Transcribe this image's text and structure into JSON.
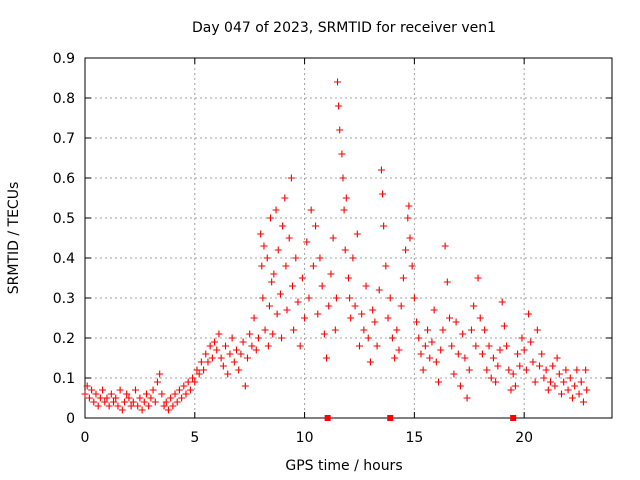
{
  "chart_data": {
    "type": "scatter",
    "title": "Day 047 of 2023, SRMTID for receiver ven1",
    "xlabel": "GPS time / hours",
    "ylabel": "SRMTID / TECUs",
    "xlim": [
      0,
      24
    ],
    "ylim": [
      0,
      0.9
    ],
    "grid": true,
    "x_ticks": [
      0,
      5,
      10,
      15,
      20
    ],
    "x_tick_labels": [
      "0",
      "5",
      "10",
      "15",
      "20"
    ],
    "y_ticks": [
      0,
      0.1,
      0.2,
      0.3,
      0.4,
      0.5,
      0.6,
      0.7,
      0.8,
      0.9
    ],
    "y_tick_labels": [
      "0",
      "0.1",
      "0.2",
      "0.3",
      "0.4",
      "0.5",
      "0.6",
      "0.7",
      "0.8",
      "0.9"
    ],
    "marker": "plus",
    "color": "#ff0000",
    "series": [
      {
        "name": "SRMTID",
        "points": [
          [
            0.0,
            0.06
          ],
          [
            0.1,
            0.08
          ],
          [
            0.2,
            0.05
          ],
          [
            0.3,
            0.07
          ],
          [
            0.4,
            0.04
          ],
          [
            0.5,
            0.06
          ],
          [
            0.6,
            0.03
          ],
          [
            0.7,
            0.05
          ],
          [
            0.8,
            0.07
          ],
          [
            0.9,
            0.04
          ],
          [
            1.0,
            0.05
          ],
          [
            1.1,
            0.03
          ],
          [
            1.2,
            0.06
          ],
          [
            1.3,
            0.04
          ],
          [
            1.4,
            0.05
          ],
          [
            1.5,
            0.03
          ],
          [
            1.6,
            0.07
          ],
          [
            1.7,
            0.02
          ],
          [
            1.8,
            0.04
          ],
          [
            1.9,
            0.06
          ],
          [
            2.0,
            0.05
          ],
          [
            2.1,
            0.03
          ],
          [
            2.2,
            0.04
          ],
          [
            2.3,
            0.07
          ],
          [
            2.4,
            0.03
          ],
          [
            2.5,
            0.05
          ],
          [
            2.6,
            0.02
          ],
          [
            2.7,
            0.04
          ],
          [
            2.8,
            0.06
          ],
          [
            2.9,
            0.03
          ],
          [
            3.0,
            0.05
          ],
          [
            3.1,
            0.07
          ],
          [
            3.2,
            0.04
          ],
          [
            3.3,
            0.09
          ],
          [
            3.4,
            0.11
          ],
          [
            3.5,
            0.06
          ],
          [
            3.6,
            0.03
          ],
          [
            3.7,
            0.04
          ],
          [
            3.8,
            0.02
          ],
          [
            3.9,
            0.05
          ],
          [
            4.0,
            0.03
          ],
          [
            4.1,
            0.06
          ],
          [
            4.2,
            0.04
          ],
          [
            4.3,
            0.07
          ],
          [
            4.4,
            0.05
          ],
          [
            4.5,
            0.08
          ],
          [
            4.6,
            0.06
          ],
          [
            4.7,
            0.09
          ],
          [
            4.8,
            0.07
          ],
          [
            4.9,
            0.1
          ],
          [
            5.0,
            0.09
          ],
          [
            5.1,
            0.12
          ],
          [
            5.2,
            0.11
          ],
          [
            5.3,
            0.14
          ],
          [
            5.4,
            0.12
          ],
          [
            5.5,
            0.16
          ],
          [
            5.6,
            0.14
          ],
          [
            5.7,
            0.18
          ],
          [
            5.8,
            0.15
          ],
          [
            5.9,
            0.19
          ],
          [
            6.0,
            0.17
          ],
          [
            6.1,
            0.21
          ],
          [
            6.2,
            0.15
          ],
          [
            6.3,
            0.13
          ],
          [
            6.4,
            0.18
          ],
          [
            6.5,
            0.11
          ],
          [
            6.6,
            0.16
          ],
          [
            6.7,
            0.2
          ],
          [
            6.8,
            0.14
          ],
          [
            6.9,
            0.17
          ],
          [
            7.0,
            0.12
          ],
          [
            7.1,
            0.16
          ],
          [
            7.2,
            0.19
          ],
          [
            7.3,
            0.08
          ],
          [
            7.4,
            0.15
          ],
          [
            7.5,
            0.21
          ],
          [
            7.6,
            0.18
          ],
          [
            7.7,
            0.25
          ],
          [
            7.8,
            0.17
          ],
          [
            7.9,
            0.2
          ],
          [
            8.0,
            0.46
          ],
          [
            8.05,
            0.38
          ],
          [
            8.1,
            0.3
          ],
          [
            8.15,
            0.43
          ],
          [
            8.2,
            0.22
          ],
          [
            8.3,
            0.4
          ],
          [
            8.35,
            0.18
          ],
          [
            8.4,
            0.28
          ],
          [
            8.45,
            0.5
          ],
          [
            8.5,
            0.34
          ],
          [
            8.55,
            0.21
          ],
          [
            8.6,
            0.36
          ],
          [
            8.7,
            0.52
          ],
          [
            8.75,
            0.26
          ],
          [
            8.8,
            0.42
          ],
          [
            8.9,
            0.31
          ],
          [
            8.95,
            0.2
          ],
          [
            9.0,
            0.48
          ],
          [
            9.1,
            0.55
          ],
          [
            9.15,
            0.38
          ],
          [
            9.2,
            0.27
          ],
          [
            9.3,
            0.45
          ],
          [
            9.4,
            0.6
          ],
          [
            9.45,
            0.33
          ],
          [
            9.5,
            0.22
          ],
          [
            9.6,
            0.4
          ],
          [
            9.7,
            0.29
          ],
          [
            9.8,
            0.18
          ],
          [
            9.9,
            0.35
          ],
          [
            10.0,
            0.25
          ],
          [
            10.1,
            0.44
          ],
          [
            10.2,
            0.3
          ],
          [
            10.3,
            0.52
          ],
          [
            10.4,
            0.38
          ],
          [
            10.5,
            0.48
          ],
          [
            10.6,
            0.26
          ],
          [
            10.7,
            0.4
          ],
          [
            10.8,
            0.33
          ],
          [
            10.9,
            0.21
          ],
          [
            11.0,
            0.15
          ],
          [
            11.1,
            0.28
          ],
          [
            11.2,
            0.36
          ],
          [
            11.3,
            0.45
          ],
          [
            11.4,
            0.22
          ],
          [
            11.45,
            0.3
          ],
          [
            11.5,
            0.84
          ],
          [
            11.55,
            0.78
          ],
          [
            11.6,
            0.72
          ],
          [
            11.7,
            0.66
          ],
          [
            11.75,
            0.6
          ],
          [
            11.8,
            0.52
          ],
          [
            11.85,
            0.42
          ],
          [
            11.9,
            0.55
          ],
          [
            12.0,
            0.35
          ],
          [
            12.05,
            0.3
          ],
          [
            12.1,
            0.25
          ],
          [
            12.2,
            0.4
          ],
          [
            12.3,
            0.28
          ],
          [
            12.4,
            0.46
          ],
          [
            12.5,
            0.18
          ],
          [
            12.6,
            0.26
          ],
          [
            12.7,
            0.22
          ],
          [
            12.8,
            0.33
          ],
          [
            12.9,
            0.2
          ],
          [
            13.0,
            0.14
          ],
          [
            13.1,
            0.27
          ],
          [
            13.2,
            0.24
          ],
          [
            13.3,
            0.18
          ],
          [
            13.4,
            0.32
          ],
          [
            13.5,
            0.62
          ],
          [
            13.55,
            0.56
          ],
          [
            13.6,
            0.48
          ],
          [
            13.7,
            0.38
          ],
          [
            13.8,
            0.25
          ],
          [
            13.9,
            0.3
          ],
          [
            14.0,
            0.2
          ],
          [
            14.1,
            0.15
          ],
          [
            14.2,
            0.22
          ],
          [
            14.3,
            0.17
          ],
          [
            14.4,
            0.28
          ],
          [
            14.5,
            0.35
          ],
          [
            14.6,
            0.42
          ],
          [
            14.7,
            0.5
          ],
          [
            14.75,
            0.53
          ],
          [
            14.8,
            0.45
          ],
          [
            14.9,
            0.38
          ],
          [
            15.0,
            0.3
          ],
          [
            15.1,
            0.24
          ],
          [
            15.2,
            0.2
          ],
          [
            15.3,
            0.16
          ],
          [
            15.4,
            0.12
          ],
          [
            15.5,
            0.18
          ],
          [
            15.6,
            0.22
          ],
          [
            15.7,
            0.15
          ],
          [
            15.8,
            0.19
          ],
          [
            15.9,
            0.27
          ],
          [
            16.0,
            0.14
          ],
          [
            16.1,
            0.09
          ],
          [
            16.2,
            0.17
          ],
          [
            16.3,
            0.22
          ],
          [
            16.4,
            0.43
          ],
          [
            16.5,
            0.34
          ],
          [
            16.6,
            0.25
          ],
          [
            16.7,
            0.18
          ],
          [
            16.8,
            0.11
          ],
          [
            16.9,
            0.24
          ],
          [
            17.0,
            0.16
          ],
          [
            17.1,
            0.08
          ],
          [
            17.2,
            0.21
          ],
          [
            17.3,
            0.15
          ],
          [
            17.4,
            0.05
          ],
          [
            17.5,
            0.12
          ],
          [
            17.6,
            0.22
          ],
          [
            17.7,
            0.28
          ],
          [
            17.8,
            0.18
          ],
          [
            17.9,
            0.35
          ],
          [
            18.0,
            0.25
          ],
          [
            18.1,
            0.16
          ],
          [
            18.2,
            0.22
          ],
          [
            18.3,
            0.12
          ],
          [
            18.4,
            0.18
          ],
          [
            18.5,
            0.1
          ],
          [
            18.6,
            0.15
          ],
          [
            18.7,
            0.09
          ],
          [
            18.8,
            0.13
          ],
          [
            18.9,
            0.17
          ],
          [
            19.0,
            0.29
          ],
          [
            19.1,
            0.23
          ],
          [
            19.2,
            0.18
          ],
          [
            19.3,
            0.12
          ],
          [
            19.4,
            0.07
          ],
          [
            19.5,
            0.11
          ],
          [
            19.6,
            0.08
          ],
          [
            19.7,
            0.16
          ],
          [
            19.8,
            0.13
          ],
          [
            19.9,
            0.2
          ],
          [
            20.0,
            0.17
          ],
          [
            20.1,
            0.12
          ],
          [
            20.2,
            0.26
          ],
          [
            20.3,
            0.19
          ],
          [
            20.4,
            0.14
          ],
          [
            20.5,
            0.09
          ],
          [
            20.6,
            0.22
          ],
          [
            20.7,
            0.13
          ],
          [
            20.8,
            0.16
          ],
          [
            20.9,
            0.1
          ],
          [
            21.0,
            0.12
          ],
          [
            21.1,
            0.07
          ],
          [
            21.2,
            0.09
          ],
          [
            21.3,
            0.13
          ],
          [
            21.4,
            0.08
          ],
          [
            21.5,
            0.15
          ],
          [
            21.6,
            0.11
          ],
          [
            21.7,
            0.06
          ],
          [
            21.8,
            0.09
          ],
          [
            21.9,
            0.12
          ],
          [
            22.0,
            0.07
          ],
          [
            22.1,
            0.1
          ],
          [
            22.2,
            0.05
          ],
          [
            22.3,
            0.08
          ],
          [
            22.4,
            0.12
          ],
          [
            22.5,
            0.06
          ],
          [
            22.6,
            0.09
          ],
          [
            22.7,
            0.04
          ],
          [
            22.8,
            0.12
          ],
          [
            22.85,
            0.07
          ]
        ]
      }
    ],
    "gap_markers_x": [
      11.05,
      13.9,
      19.5
    ]
  }
}
